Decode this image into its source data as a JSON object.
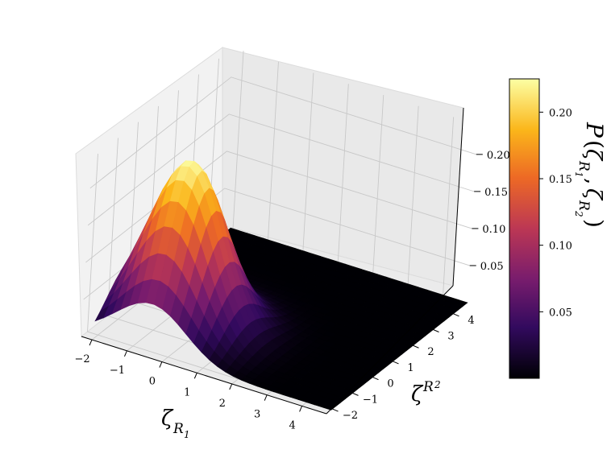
{
  "chart_data": {
    "type": "surface3d",
    "title": "",
    "xlabel": "ζ_R1",
    "ylabel": "ζ_R2",
    "zlabel": "",
    "colorbar_label": "P(ζ_R1, ζ_R2)",
    "colormap": "inferno",
    "colormap_stops": [
      "#000004",
      "#320a5e",
      "#781c6d",
      "#bc3754",
      "#ed6925",
      "#fbb61a",
      "#fcffa4"
    ],
    "xlim": [
      -2.3,
      4.7
    ],
    "ylim": [
      -2.3,
      4.7
    ],
    "zlim": [
      0,
      0.24
    ],
    "x_ticks": [
      "−2",
      "−1",
      "0",
      "1",
      "2",
      "3",
      "4"
    ],
    "x_tick_values": [
      -2,
      -1,
      0,
      1,
      2,
      3,
      4
    ],
    "y_ticks": [
      "−2",
      "−1",
      "0",
      "1",
      "2",
      "3",
      "4"
    ],
    "y_tick_values": [
      -2,
      -1,
      0,
      1,
      2,
      3,
      4
    ],
    "z_ticks": [
      "0.05",
      "0.10",
      "0.15",
      "0.20"
    ],
    "z_tick_values": [
      0.05,
      0.1,
      0.15,
      0.2
    ],
    "colorbar_ticks": [
      "0.05",
      "0.10",
      "0.15",
      "0.20"
    ],
    "colorbar_tick_values": [
      0.05,
      0.1,
      0.15,
      0.2
    ],
    "colorbar_range": [
      0,
      0.225
    ],
    "peak": {
      "x": -0.5,
      "y": -0.5,
      "value": 0.225
    },
    "spread": 1.0,
    "grid": true
  }
}
